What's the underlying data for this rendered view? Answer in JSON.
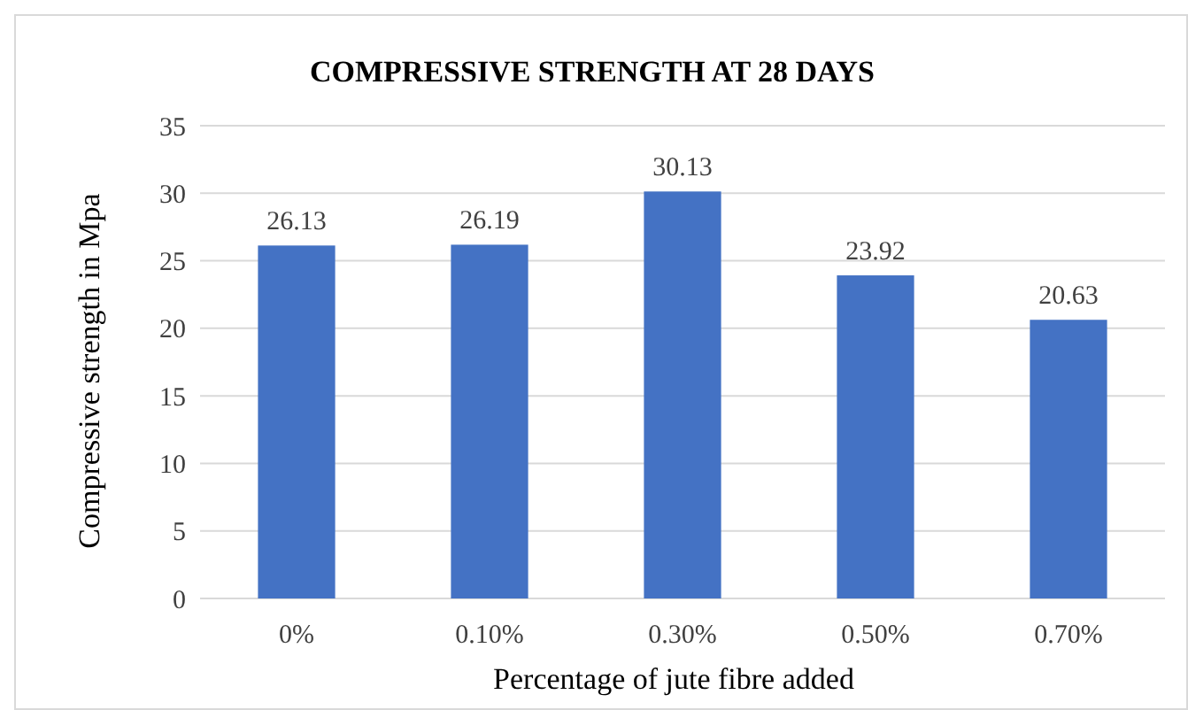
{
  "chart_data": {
    "type": "bar",
    "title": "COMPRESSIVE STRENGTH AT 28 DAYS",
    "xlabel": "Percentage of  jute fibre added",
    "ylabel": "Compressive strength in Mpa",
    "categories": [
      "0%",
      "0.10%",
      "0.30%",
      "0.50%",
      "0.70%"
    ],
    "values": [
      26.13,
      26.19,
      30.13,
      23.92,
      20.63
    ],
    "color": "#4472c4",
    "ylim": [
      0,
      35
    ],
    "yticks": [
      0,
      5,
      10,
      15,
      20,
      25,
      30,
      35
    ],
    "grid": "y",
    "data_labels": true
  }
}
